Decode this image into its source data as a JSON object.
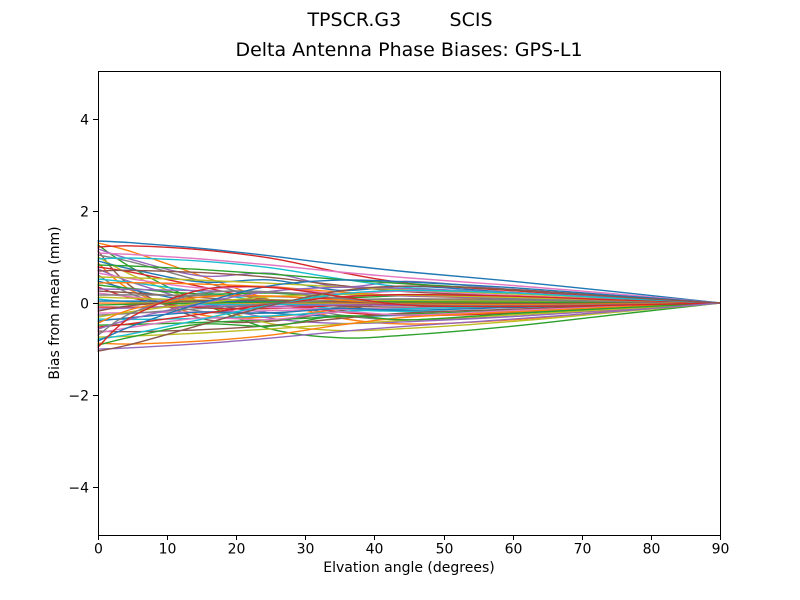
{
  "chart_data": {
    "type": "line",
    "suptitle": "TPSCR.G3        SCIS",
    "title": "Delta Antenna Phase Biases: GPS-L1",
    "xlabel": "Elvation angle (degrees)",
    "ylabel": "Bias from mean (mm)",
    "xlim": [
      0,
      90
    ],
    "ylim": [
      -5.05,
      5.05
    ],
    "xticks": [
      0,
      10,
      20,
      30,
      40,
      50,
      60,
      70,
      80,
      90
    ],
    "yticks": [
      -4,
      -2,
      0,
      2,
      4
    ],
    "grid": false,
    "legend": "none",
    "background_color": "#ffffff",
    "axis_color": "#000000",
    "text_color": "#000000",
    "line_width": 1.4,
    "n_series": 56,
    "x_anchors": [
      0,
      5,
      15,
      25,
      35,
      45,
      60,
      75,
      90
    ],
    "envelope_upper_at_xticks": [
      1.35,
      1.2,
      1.05,
      0.85,
      0.7,
      0.6,
      0.5,
      0.35,
      0.2,
      0
    ],
    "envelope_lower_at_xticks": [
      -1.05,
      -0.9,
      -0.78,
      -0.65,
      -0.75,
      -0.62,
      -0.48,
      -0.35,
      -0.2,
      0
    ],
    "color_cycle": [
      "#1f77b4",
      "#ff7f0e",
      "#2ca02c",
      "#d62728",
      "#9467bd",
      "#8c564b",
      "#e377c2",
      "#7f7f7f",
      "#bcbd22",
      "#17becf"
    ],
    "shape_profiles": [
      [
        1,
        0.97,
        0.88,
        0.76,
        0.62,
        0.5,
        0.35,
        0.18,
        0
      ],
      [
        1,
        0.85,
        0.45,
        0.05,
        -0.25,
        -0.35,
        -0.28,
        -0.13,
        0
      ],
      [
        1,
        0.6,
        0.0,
        -0.45,
        -0.6,
        -0.55,
        -0.4,
        -0.2,
        0
      ],
      [
        1,
        1.02,
        0.95,
        0.8,
        0.55,
        0.35,
        0.22,
        0.1,
        0
      ],
      [
        1,
        0.8,
        0.5,
        0.55,
        0.3,
        0.4,
        0.25,
        0.12,
        0
      ],
      [
        1,
        0.3,
        -0.3,
        -0.35,
        -0.15,
        0.05,
        0.08,
        0.05,
        0
      ]
    ],
    "series": [
      {
        "start": 1.35,
        "profile": 0
      },
      {
        "start": 1.306,
        "profile": 1
      },
      {
        "start": 1.263,
        "profile": 2
      },
      {
        "start": 1.219,
        "profile": 3
      },
      {
        "start": 1.176,
        "profile": 4
      },
      {
        "start": 1.132,
        "profile": 5
      },
      {
        "start": 1.088,
        "profile": 0
      },
      {
        "start": 1.045,
        "profile": 1
      },
      {
        "start": 1.001,
        "profile": 2
      },
      {
        "start": 0.958,
        "profile": 3
      },
      {
        "start": 0.914,
        "profile": 4
      },
      {
        "start": 0.87,
        "profile": 5
      },
      {
        "start": 0.827,
        "profile": 0
      },
      {
        "start": 0.783,
        "profile": 1
      },
      {
        "start": 0.74,
        "profile": 2
      },
      {
        "start": 0.696,
        "profile": 3
      },
      {
        "start": 0.652,
        "profile": 4
      },
      {
        "start": 0.609,
        "profile": 5
      },
      {
        "start": 0.565,
        "profile": 0
      },
      {
        "start": 0.522,
        "profile": 1
      },
      {
        "start": 0.478,
        "profile": 2
      },
      {
        "start": 0.434,
        "profile": 3
      },
      {
        "start": 0.391,
        "profile": 4
      },
      {
        "start": 0.347,
        "profile": 5
      },
      {
        "start": 0.304,
        "profile": 0
      },
      {
        "start": 0.26,
        "profile": 1
      },
      {
        "start": 0.216,
        "profile": 2
      },
      {
        "start": 0.173,
        "profile": 3
      },
      {
        "start": 0.129,
        "profile": 4
      },
      {
        "start": 0.086,
        "profile": 5
      },
      {
        "start": 0.042,
        "profile": 0
      },
      {
        "start": -0.002,
        "profile": 1
      },
      {
        "start": -0.045,
        "profile": 2
      },
      {
        "start": -0.089,
        "profile": 3
      },
      {
        "start": -0.132,
        "profile": 4
      },
      {
        "start": -0.176,
        "profile": 5
      },
      {
        "start": -0.22,
        "profile": 0
      },
      {
        "start": -0.263,
        "profile": 1
      },
      {
        "start": -0.307,
        "profile": 2
      },
      {
        "start": -0.35,
        "profile": 3
      },
      {
        "start": -0.394,
        "profile": 4
      },
      {
        "start": -0.438,
        "profile": 5
      },
      {
        "start": -0.481,
        "profile": 0
      },
      {
        "start": -0.525,
        "profile": 1
      },
      {
        "start": -0.568,
        "profile": 2
      },
      {
        "start": -0.612,
        "profile": 3
      },
      {
        "start": -0.656,
        "profile": 4
      },
      {
        "start": -0.699,
        "profile": 5
      },
      {
        "start": -0.743,
        "profile": 0
      },
      {
        "start": -0.786,
        "profile": 1
      },
      {
        "start": -0.83,
        "profile": 2
      },
      {
        "start": -0.874,
        "profile": 3
      },
      {
        "start": -0.917,
        "profile": 4
      },
      {
        "start": -0.961,
        "profile": 5
      },
      {
        "start": -1.004,
        "profile": 0
      },
      {
        "start": -1.048,
        "profile": 1
      }
    ]
  }
}
